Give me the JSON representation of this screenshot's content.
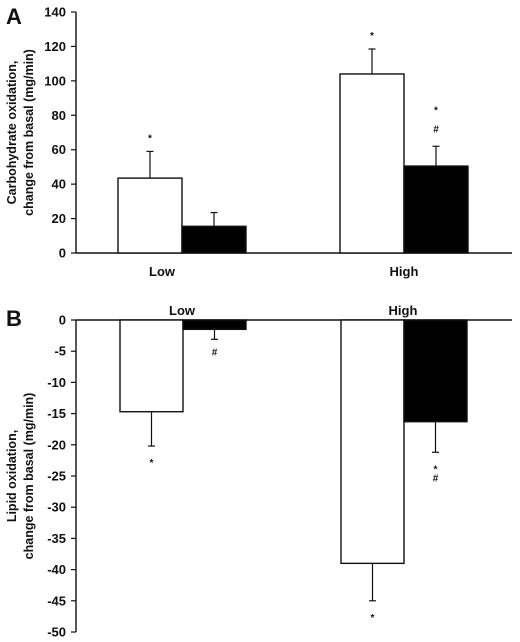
{
  "chart_data": [
    {
      "type": "bar",
      "panel": "A",
      "ylabel_line1": "Carbohydrate oxidation,",
      "ylabel_line2": "change from basal (mg/min)",
      "categories": [
        "Low",
        "High"
      ],
      "ylim": [
        0,
        140
      ],
      "yticks": [
        0,
        20,
        40,
        60,
        80,
        100,
        120,
        140
      ],
      "series": [
        {
          "values": [
            43.5,
            104
          ],
          "errors": [
            15.5,
            14.5
          ],
          "color": "#ffffff",
          "significance": [
            [
              "*"
            ],
            [
              "*"
            ]
          ]
        },
        {
          "values": [
            15.5,
            50.5
          ],
          "errors": [
            8,
            11.5
          ],
          "color": "#000000",
          "significance": [
            [],
            [
              "*",
              "#"
            ]
          ]
        }
      ]
    },
    {
      "type": "bar",
      "panel": "B",
      "ylabel_line1": "Lipid oxidation,",
      "ylabel_line2": "change from basal (mg/min)",
      "categories": [
        "Low",
        "High"
      ],
      "ylim": [
        -50,
        0
      ],
      "yticks": [
        0,
        -5,
        -10,
        -15,
        -20,
        -25,
        -30,
        -35,
        -40,
        -45,
        -50
      ],
      "series": [
        {
          "values": [
            -14.7,
            -39.0
          ],
          "errors": [
            5.5,
            6.0
          ],
          "color": "#ffffff",
          "significance": [
            [
              "*"
            ],
            [
              "*"
            ]
          ]
        },
        {
          "values": [
            -1.5,
            -16.3
          ],
          "errors": [
            1.6,
            4.9
          ],
          "color": "#000000",
          "significance": [
            [
              "#"
            ],
            [
              "*",
              "#"
            ]
          ]
        }
      ]
    }
  ]
}
